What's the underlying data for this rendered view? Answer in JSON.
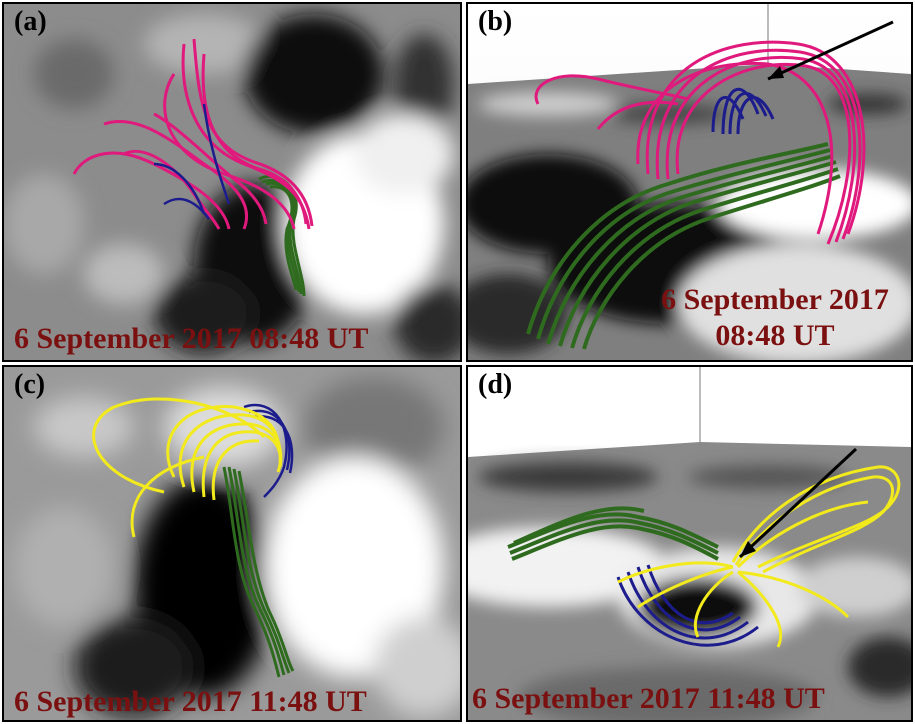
{
  "panels": {
    "a": {
      "label": "(a)",
      "caption": "6 September 2017 08:48 UT"
    },
    "b": {
      "label": "(b)",
      "caption_line1": "6 September 2017",
      "caption_line2": "08:48 UT"
    },
    "c": {
      "label": "(c)",
      "caption": "6 September 2017 11:48 UT"
    },
    "d": {
      "label": "(d)",
      "caption": "6 September 2017 11:48 UT"
    }
  },
  "colors": {
    "pink_field_lines": "#e0197d",
    "blue_field_lines": "#1c1c8c",
    "green_field_lines": "#2f6b1f",
    "yellow_field_lines": "#f2ea1c",
    "caption_text": "#7a1010"
  }
}
